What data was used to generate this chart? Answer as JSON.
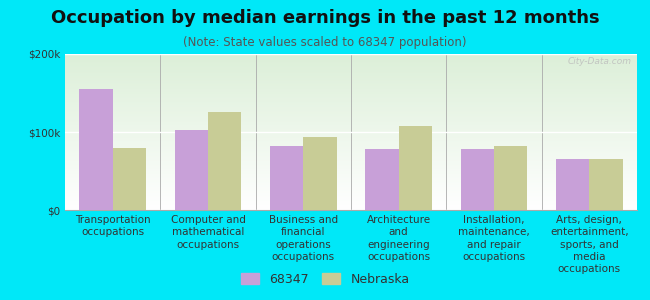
{
  "title": "Occupation by median earnings in the past 12 months",
  "subtitle": "(Note: State values scaled to 68347 population)",
  "categories": [
    "Transportation\noccupations",
    "Computer and\nmathematical\noccupations",
    "Business and\nfinancial\noperations\noccupations",
    "Architecture\nand\nengineering\noccupations",
    "Installation,\nmaintenance,\nand repair\noccupations",
    "Arts, design,\nentertainment,\nsports, and\nmedia\noccupations"
  ],
  "values_68347": [
    155000,
    102000,
    82000,
    78000,
    78000,
    65000
  ],
  "values_nebraska": [
    80000,
    125000,
    93000,
    108000,
    82000,
    65000
  ],
  "color_68347": "#c8a0d8",
  "color_nebraska": "#c8cc96",
  "ylim": [
    0,
    200000
  ],
  "yticks": [
    0,
    100000,
    200000
  ],
  "ytick_labels": [
    "$0",
    "$100k",
    "$200k"
  ],
  "background_color": "#00e8f8",
  "plot_bg_top": "#ffffff",
  "plot_bg_bottom": "#dcefd8",
  "watermark": "City-Data.com",
  "legend_label_68347": "68347",
  "legend_label_nebraska": "Nebraska",
  "bar_width": 0.35,
  "title_fontsize": 13,
  "subtitle_fontsize": 8.5,
  "tick_fontsize": 7.5,
  "legend_fontsize": 9
}
